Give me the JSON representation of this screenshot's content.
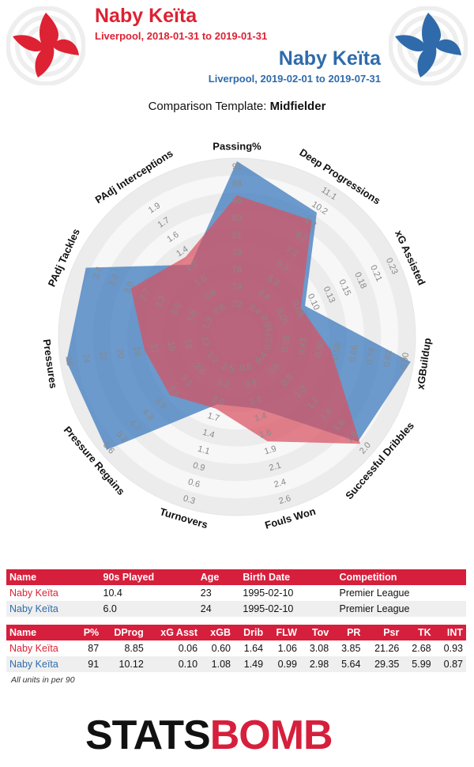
{
  "header": {
    "player1": {
      "name": "Naby Keïta",
      "period": "Liverpool, 2018-01-31 to 2019-01-31",
      "color": "#dd2233"
    },
    "player2": {
      "name": "Naby Keïta",
      "period": "Liverpool, 2019-02-01 to 2019-07-31",
      "color": "#2f6bab"
    },
    "template_prefix": "Comparison Template: ",
    "template_name": "Midfielder"
  },
  "chart_data": {
    "type": "radar",
    "axes": [
      {
        "label": "Passing%",
        "ticks": [
          "72",
          "74",
          "76",
          "79",
          "81",
          "83",
          "86",
          "88",
          "91"
        ]
      },
      {
        "label": "Deep Progressions",
        "ticks": [
          "3.4",
          "4.4",
          "5.3",
          "6.3",
          "7.3",
          "8.2",
          "9.2",
          "10.2",
          "11.1"
        ]
      },
      {
        "label": "xG Assisted",
        "ticks": [
          "0.03",
          "0.05",
          "0.08",
          "0.10",
          "0.13",
          "0.15",
          "0.18",
          "0.21",
          "0.23"
        ]
      },
      {
        "label": "xGBuildup",
        "ticks": [
          "0.27",
          "0.35",
          "0.43",
          "0.50",
          "0.58",
          "0.66",
          "0.74",
          "0.82",
          "0.90"
        ]
      },
      {
        "label": "Successful Dribbles",
        "ticks": [
          "0.4",
          "0.6",
          "0.8",
          "1.0",
          "1.2",
          "1.4",
          "1.6",
          "1.8",
          "2.0"
        ]
      },
      {
        "label": "Fouls Won",
        "ticks": [
          "0.6",
          "0.9",
          "1.1",
          "1.4",
          "1.6",
          "1.9",
          "2.1",
          "2.4",
          "2.6"
        ]
      },
      {
        "label": "Turnovers",
        "ticks": [
          "2.5",
          "2.2",
          "2.0",
          "1.7",
          "1.4",
          "1.1",
          "0.9",
          "0.6",
          "0.3"
        ]
      },
      {
        "label": "Pressure Regains",
        "ticks": [
          "2.2",
          "2.6",
          "3.1",
          "3.5",
          "3.9",
          "4.3",
          "4.7",
          "5.2",
          "5.6"
        ]
      },
      {
        "label": "Pressures",
        "ticks": [
          "12",
          "13",
          "15",
          "17",
          "19",
          "20",
          "22",
          "24",
          "26"
        ]
      },
      {
        "label": "PAdj Tackles",
        "ticks": [
          "1.3",
          "1.6",
          "2.0",
          "2.3",
          "2.7",
          "3.0",
          "3.3",
          "3.7"
        ]
      },
      {
        "label": "PAdj Interceptions",
        "ticks": [
          "0.6",
          "0.8",
          "1.0",
          "1.2",
          "1.4",
          "1.6",
          "1.7",
          "1.9"
        ]
      }
    ],
    "series": [
      {
        "name": "Naby Keïta",
        "period": "2018-01-31 to 2019-01-31",
        "color": "#e05260",
        "values": [
          0.76,
          0.74,
          0.3,
          0.46,
          0.9,
          0.55,
          0.33,
          0.42,
          0.45,
          0.6,
          0.46
        ]
      },
      {
        "name": "Naby Keïta",
        "period": "2019-02-01 to 2019-07-31",
        "color": "#3d7bbd",
        "values": [
          0.98,
          0.8,
          0.33,
          0.98,
          0.88,
          0.33,
          0.3,
          0.96,
          0.96,
          0.92,
          0.4
        ]
      }
    ]
  },
  "table1": {
    "headers": [
      "Name",
      "90s Played",
      "Age",
      "Birth Date",
      "Competition"
    ],
    "rows": [
      [
        "Naby Keïta",
        "10.4",
        "23",
        "1995-02-10",
        "Premier League"
      ],
      [
        "Naby Keïta",
        "6.0",
        "24",
        "1995-02-10",
        "Premier League"
      ]
    ]
  },
  "table2": {
    "headers": [
      "Name",
      "P%",
      "DProg",
      "xG Asst",
      "xGB",
      "Drib",
      "FLW",
      "Tov",
      "PR",
      "Psr",
      "TK",
      "INT"
    ],
    "rows": [
      [
        "Naby Keïta",
        "87",
        "8.85",
        "0.06",
        "0.60",
        "1.64",
        "1.06",
        "3.08",
        "3.85",
        "21.26",
        "2.68",
        "0.93"
      ],
      [
        "Naby Keïta",
        "91",
        "10.12",
        "0.10",
        "1.08",
        "1.49",
        "0.99",
        "2.98",
        "5.64",
        "29.35",
        "5.99",
        "0.87"
      ]
    ]
  },
  "footnote": "All units in per 90",
  "logo": {
    "part1": "STATS",
    "part2": "BOMB"
  }
}
